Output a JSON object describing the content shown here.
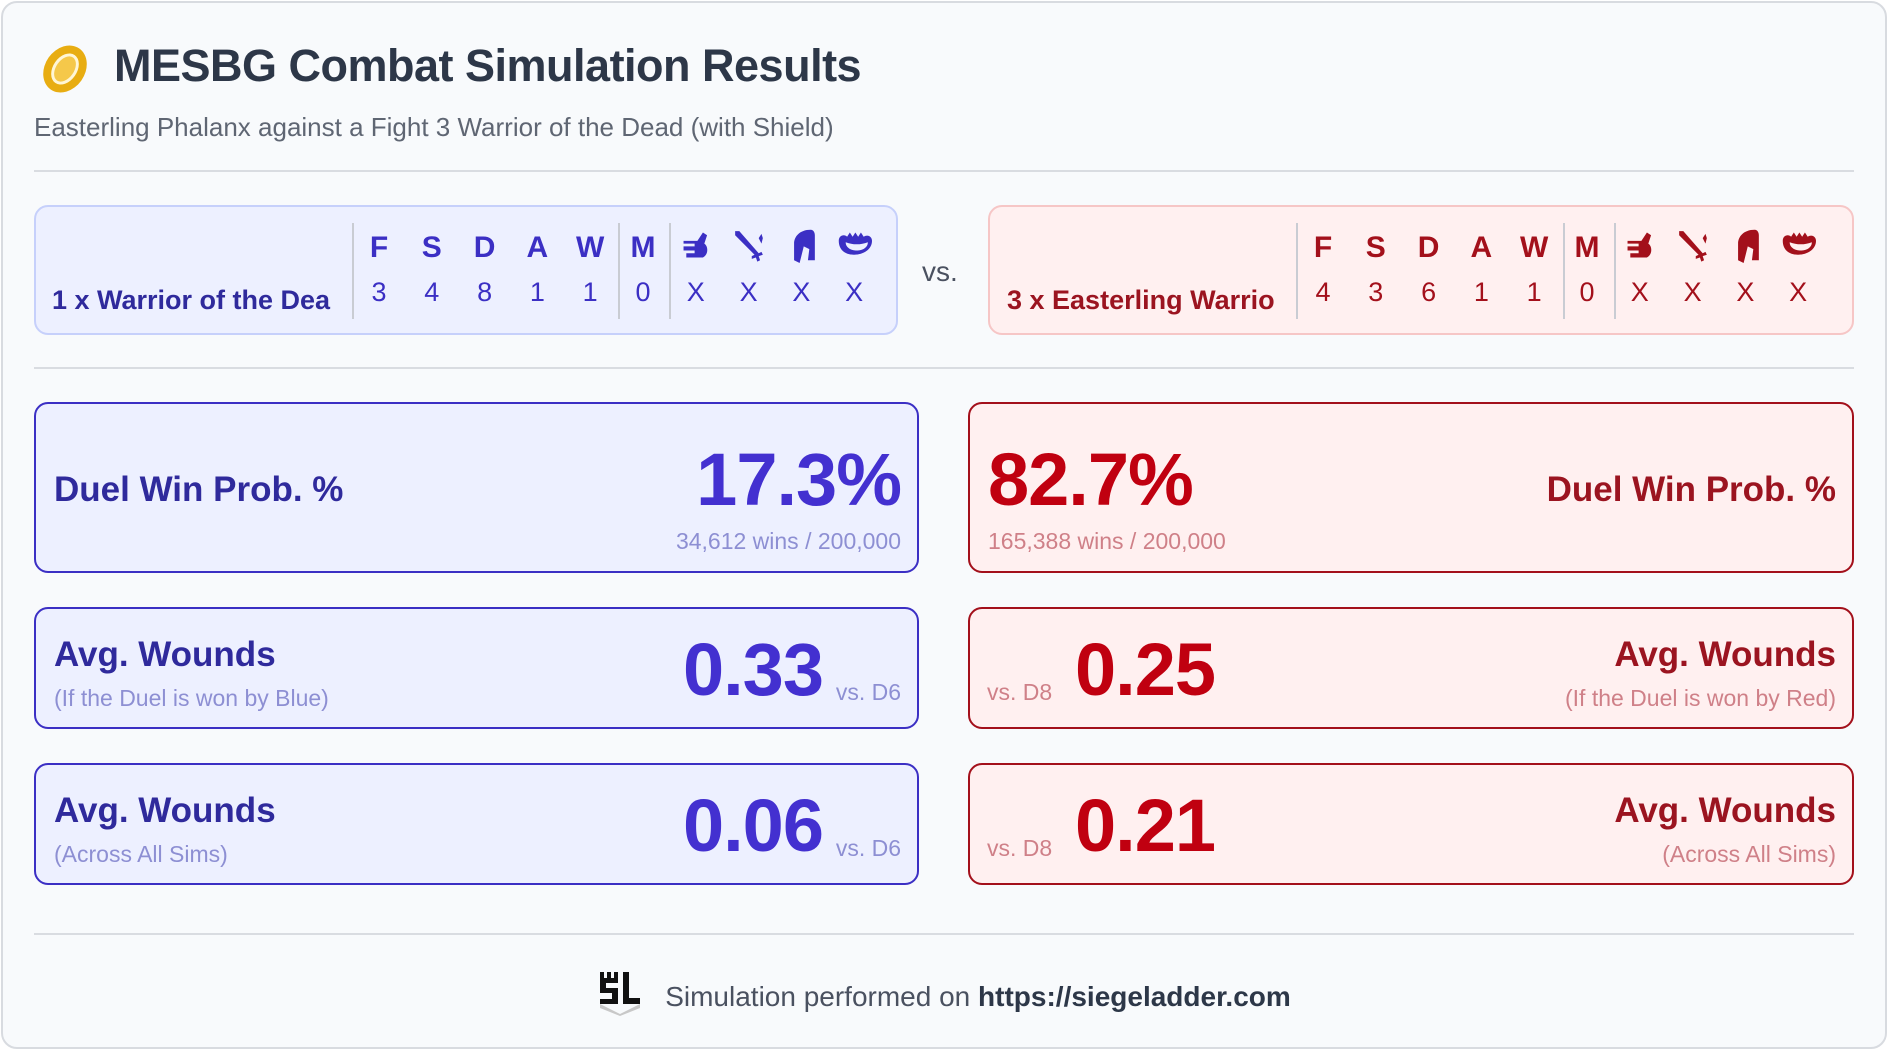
{
  "header": {
    "title": "MESBG Combat Simulation Results",
    "subtitle": "Easterling Phalanx against a Fight 3 Warrior of the Dead (with Shield)",
    "logo_icon": "one-ring-icon"
  },
  "stat_headers": [
    "F",
    "S",
    "D",
    "A",
    "W",
    "M"
  ],
  "special_icons": [
    "hand-icon",
    "sword-icon",
    "horse-head-icon",
    "jaws-icon"
  ],
  "blue": {
    "name": "1 x Warrior of the Dea",
    "stats": [
      "3",
      "4",
      "8",
      "1",
      "1",
      "0"
    ],
    "specials": [
      "X",
      "X",
      "X",
      "X"
    ],
    "duel_label": "Duel Win Prob. %",
    "duel_pct": "17.3%",
    "duel_sub": "34,612 wins / 200,000",
    "w1_label": "Avg. Wounds",
    "w1_sub": "(If the Duel is won by Blue)",
    "w1_value": "0.33",
    "w1_vs": "vs. D6",
    "w2_label": "Avg. Wounds",
    "w2_sub": "(Across All Sims)",
    "w2_value": "0.06",
    "w2_vs": "vs. D6"
  },
  "vs": "vs.",
  "red": {
    "name": "3 x Easterling Warrio",
    "stats": [
      "4",
      "3",
      "6",
      "1",
      "1",
      "0"
    ],
    "specials": [
      "X",
      "X",
      "X",
      "X"
    ],
    "duel_label": "Duel Win Prob. %",
    "duel_pct": "82.7%",
    "duel_sub": "165,388 wins / 200,000",
    "w1_label": "Avg. Wounds",
    "w1_sub": "(If the Duel is won by Red)",
    "w1_value": "0.25",
    "w1_vs": "vs. D8",
    "w2_label": "Avg. Wounds",
    "w2_sub": "(Across All Sims)",
    "w2_value": "0.21",
    "w2_vs": "vs. D8"
  },
  "footer": {
    "text": "Simulation performed on",
    "link": "https://siegeladder.com"
  },
  "colors": {
    "blue": "#4330d0",
    "red": "#c00010"
  }
}
